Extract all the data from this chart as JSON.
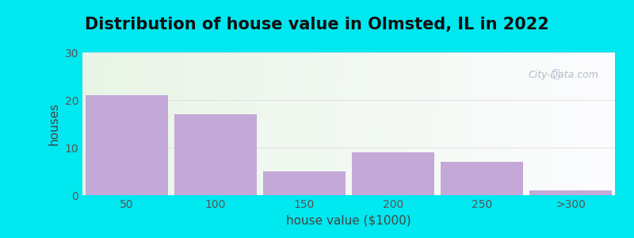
{
  "title": "Distribution of house value in Olmsted, IL in 2022",
  "xlabel": "house value ($1000)",
  "ylabel": "houses",
  "categories": [
    "50",
    "100",
    "150",
    "200",
    "250",
    ">300"
  ],
  "values": [
    21,
    17,
    5,
    9,
    7,
    1
  ],
  "bar_color": "#c4a8d8",
  "ylim": [
    0,
    30
  ],
  "yticks": [
    0,
    10,
    20,
    30
  ],
  "background_outer": "#00e8f0",
  "title_fontsize": 15,
  "axis_label_fontsize": 11,
  "tick_fontsize": 10,
  "bar_width": 0.92
}
